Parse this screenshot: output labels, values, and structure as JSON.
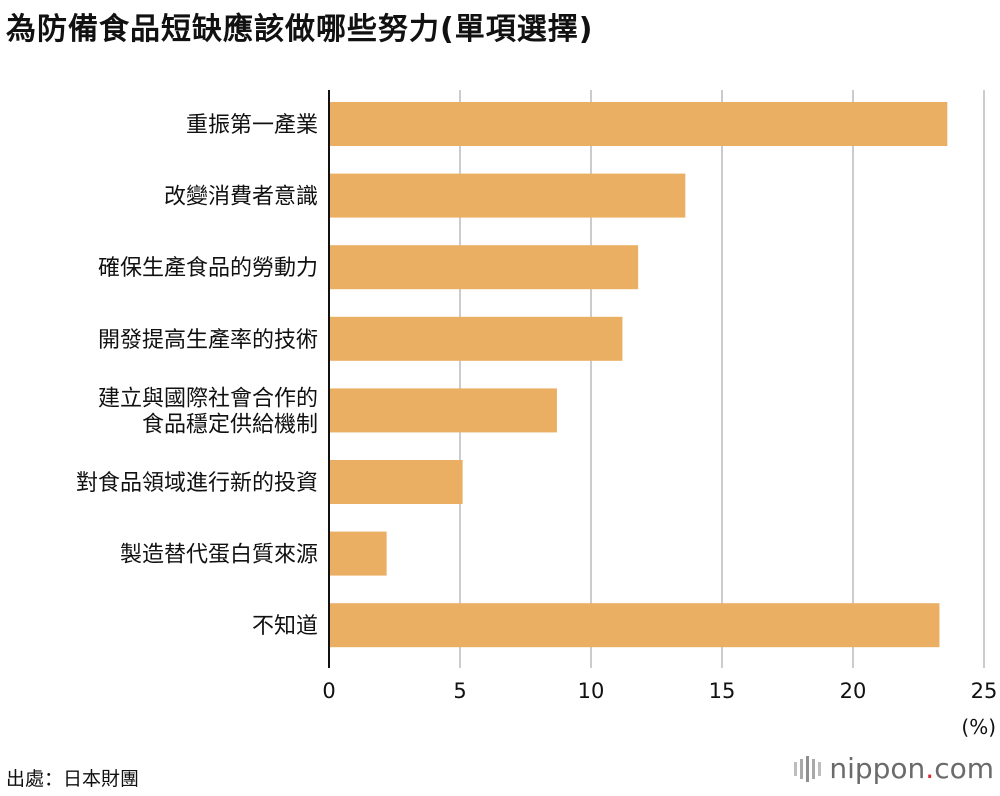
{
  "title": "為防備食品短缺應該做哪些努力(單項選擇)",
  "source": "出處：日本財團",
  "brand": {
    "text": "nippon",
    "dot": ".",
    "suffix": "com"
  },
  "colors": {
    "bar": "#ebaf63",
    "grid": "#cccccc",
    "axis": "#111111",
    "brand_accent": "#d9282f"
  },
  "chart_data": {
    "type": "bar",
    "orientation": "horizontal",
    "title": "為防備食品短缺應該做哪些努力(單項選擇)",
    "xlabel": "",
    "ylabel": "",
    "unit_label": "(%)",
    "xlim": [
      0,
      25
    ],
    "xticks": [
      0,
      5,
      10,
      15,
      20,
      25
    ],
    "grid": true,
    "categories": [
      [
        "重振第一產業"
      ],
      [
        "改變消費者意識"
      ],
      [
        "確保生產食品的勞動力"
      ],
      [
        "開發提高生產率的技術"
      ],
      [
        "建立與國際社會合作的",
        "食品穩定供給機制"
      ],
      [
        "對食品領域進行新的投資"
      ],
      [
        "製造替代蛋白質來源"
      ],
      [
        "不知道"
      ]
    ],
    "values": [
      23.6,
      13.6,
      11.8,
      11.2,
      8.7,
      5.1,
      2.2,
      23.3
    ]
  }
}
